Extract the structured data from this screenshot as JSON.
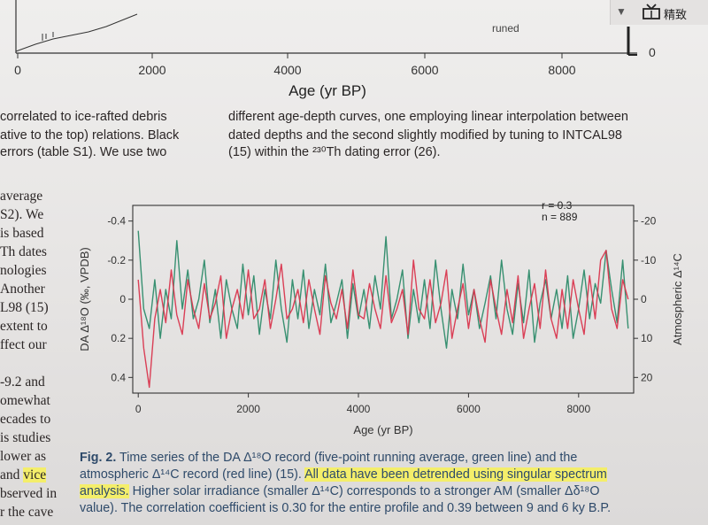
{
  "toolbar": {
    "label": "精致"
  },
  "top_figure": {
    "x_ticks": [
      "0",
      "2000",
      "4000",
      "6000",
      "8000"
    ],
    "xlabel": "Age (yr BP)",
    "right_tick": "0",
    "legend_fragment": "runed"
  },
  "body_text": {
    "left_col_top": [
      "correlated to ice-rafted debris",
      "ative to the top) relations. Black",
      "errors (table S1). We use two"
    ],
    "mid_col": [
      "different age-depth curves, one employing linear interpolation between",
      "dated depths and the second slightly modified by tuning to INTCAL98",
      "(15) within the ²³⁰Th dating error (26)."
    ],
    "left_col_bottom": [
      "average",
      "S2). We",
      "is based",
      "Th dates",
      "nologies",
      "Another",
      "L98 (15)",
      "extent to",
      "ffect our",
      "",
      "-9.2 and",
      "omewhat",
      "ecades to",
      "is studies",
      "lower as",
      "and vice",
      "bserved in",
      "r the cave"
    ],
    "left_col_vice_highlight": "vice"
  },
  "chart_data": {
    "type": "line",
    "xlabel": "Age (yr BP)",
    "ylabel": "DA Δ¹⁸O (‰, VPDB)",
    "y2label": "Atmospheric Δ¹⁴C",
    "xlim": [
      -100,
      9000
    ],
    "ylim": [
      0.48,
      -0.48
    ],
    "y2lim": [
      24,
      -24
    ],
    "x_ticks": [
      "0",
      "2000",
      "4000",
      "6000",
      "8000"
    ],
    "y_ticks": [
      "-0.4",
      "-0.2",
      "0",
      "0.2",
      "0.4"
    ],
    "y2_ticks": [
      "-20",
      "-10",
      "0",
      "10",
      "20"
    ],
    "annotation": [
      "r = 0.3",
      "n = 889"
    ],
    "series": [
      {
        "color": "#2e8b6a",
        "x": [
          0,
          100,
          200,
          300,
          400,
          500,
          600,
          700,
          800,
          900,
          1000,
          1100,
          1200,
          1300,
          1400,
          1500,
          1600,
          1700,
          1800,
          1900,
          2000,
          2100,
          2200,
          2300,
          2400,
          2500,
          2600,
          2700,
          2800,
          2900,
          3000,
          3100,
          3200,
          3300,
          3400,
          3500,
          3600,
          3700,
          3800,
          3900,
          4000,
          4100,
          4200,
          4300,
          4400,
          4500,
          4600,
          4700,
          4800,
          4900,
          5000,
          5100,
          5200,
          5300,
          5400,
          5500,
          5600,
          5700,
          5800,
          5900,
          6000,
          6100,
          6200,
          6300,
          6400,
          6500,
          6600,
          6700,
          6800,
          6900,
          7000,
          7100,
          7200,
          7300,
          7400,
          7500,
          7600,
          7700,
          7800,
          7900,
          8000,
          8100,
          8200,
          8300,
          8400,
          8500,
          8600,
          8700,
          8800,
          8900
        ],
        "values": [
          -0.35,
          0.05,
          0.15,
          -0.1,
          0.2,
          -0.05,
          0.1,
          -0.3,
          0.05,
          -0.15,
          0.1,
          0.0,
          -0.2,
          0.12,
          -0.05,
          0.2,
          -0.1,
          0.05,
          0.15,
          -0.18,
          0.08,
          -0.12,
          0.18,
          -0.05,
          0.1,
          -0.2,
          0.05,
          0.22,
          -0.1,
          0.1,
          -0.15,
          0.15,
          -0.05,
          0.08,
          -0.18,
          0.12,
          0.02,
          -0.1,
          0.2,
          -0.08,
          0.1,
          -0.05,
          0.15,
          -0.12,
          0.05,
          -0.32,
          0.1,
          0.0,
          -0.15,
          0.2,
          -0.05,
          0.12,
          -0.1,
          0.15,
          -0.2,
          0.05,
          0.25,
          -0.05,
          0.1,
          -0.18,
          0.08,
          -0.05,
          0.15,
          0.02,
          -0.12,
          0.1,
          -0.2,
          0.05,
          0.18,
          -0.08,
          0.12,
          -0.15,
          0.22,
          0.02,
          -0.1,
          0.1,
          -0.05,
          0.15,
          -0.12,
          0.2,
          0.05,
          -0.15,
          0.1,
          -0.08,
          0.02,
          -0.25,
          -0.05,
          0.12,
          -0.2,
          0.15
        ]
      },
      {
        "color": "#d9364e",
        "x": [
          0,
          100,
          200,
          300,
          400,
          500,
          600,
          700,
          800,
          900,
          1000,
          1100,
          1200,
          1300,
          1400,
          1500,
          1600,
          1700,
          1800,
          1900,
          2000,
          2100,
          2200,
          2300,
          2400,
          2500,
          2600,
          2700,
          2800,
          2900,
          3000,
          3100,
          3200,
          3300,
          3400,
          3500,
          3600,
          3700,
          3800,
          3900,
          4000,
          4100,
          4200,
          4300,
          4400,
          4500,
          4600,
          4700,
          4800,
          4900,
          5000,
          5100,
          5200,
          5300,
          5400,
          5500,
          5600,
          5700,
          5800,
          5900,
          6000,
          6100,
          6200,
          6300,
          6400,
          6500,
          6600,
          6700,
          6800,
          6900,
          7000,
          7100,
          7200,
          7300,
          7400,
          7500,
          7600,
          7700,
          7800,
          7900,
          8000,
          8100,
          8200,
          8300,
          8400,
          8500,
          8600,
          8700,
          8800,
          8900
        ],
        "values": [
          -0.1,
          0.25,
          0.45,
          0.1,
          -0.05,
          0.12,
          -0.15,
          0.08,
          0.18,
          -0.1,
          0.05,
          0.15,
          -0.08,
          0.1,
          0.02,
          -0.12,
          0.2,
          0.05,
          -0.05,
          0.1,
          -0.15,
          0.1,
          0.05,
          -0.1,
          0.15,
          0.0,
          -0.18,
          0.1,
          0.05,
          -0.05,
          0.12,
          -0.1,
          0.05,
          0.18,
          -0.12,
          0.02,
          0.1,
          -0.05,
          0.15,
          -0.15,
          0.08,
          0.1,
          -0.08,
          0.05,
          0.15,
          -0.12,
          0.12,
          0.05,
          -0.05,
          0.18,
          -0.2,
          0.05,
          0.1,
          -0.1,
          0.12,
          0.02,
          -0.15,
          0.2,
          0.05,
          -0.08,
          0.15,
          -0.05,
          0.1,
          0.22,
          -0.1,
          0.05,
          0.18,
          -0.05,
          0.12,
          -0.12,
          0.2,
          0.05,
          -0.08,
          0.15,
          -0.15,
          0.1,
          0.2,
          -0.05,
          0.15,
          -0.1,
          0.05,
          0.18,
          -0.12,
          0.1,
          -0.2,
          -0.25,
          0.05,
          0.15,
          -0.1,
          0.0
        ]
      }
    ]
  },
  "caption": {
    "lines": [
      [
        "Fig. 2.",
        " Time series of the DA Δ¹⁸O record (five-point running average, green line) and the"
      ],
      [
        "",
        "atmospheric Δ¹⁴C record (red line) (15). ",
        "All data have been detrended using singular spectrum"
      ],
      [
        "analysis.",
        " Higher solar irradiance (smaller Δ¹⁴C) corresponds to a stronger AM (smaller Δδ¹⁸O"
      ],
      [
        "",
        "value). The correlation coefficient is 0.30 for the entire profile and 0.39 between 9 and 6 ky B.P."
      ]
    ]
  }
}
